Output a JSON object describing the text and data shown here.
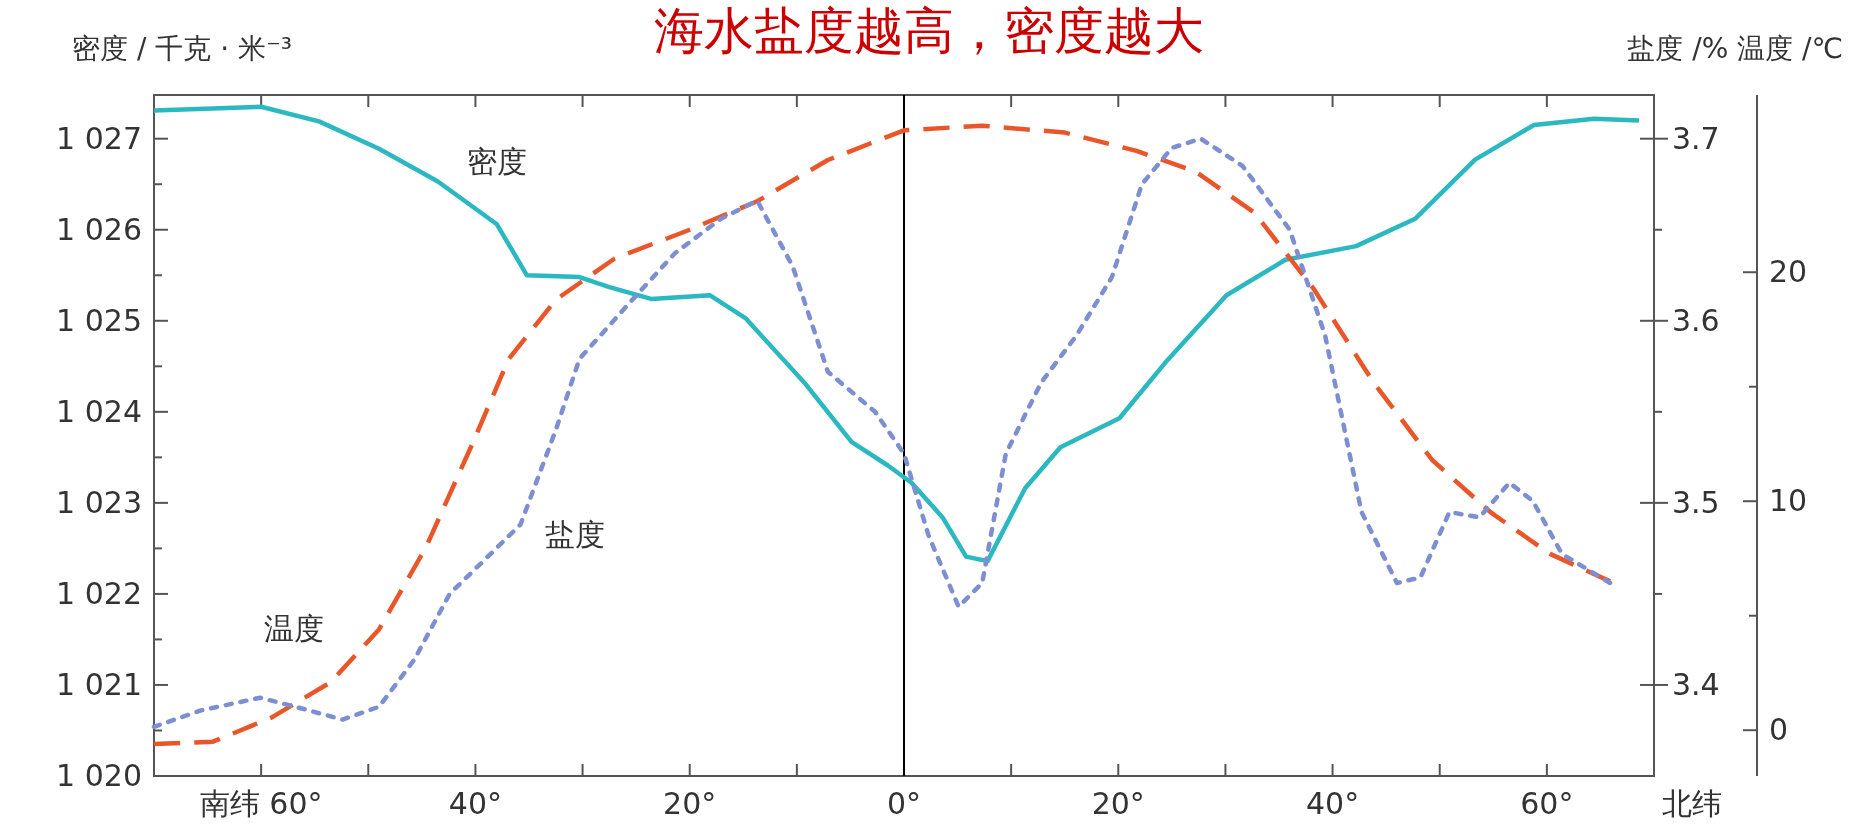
{
  "chart_data": {
    "type": "line",
    "title": "海水盐度越高，密度越大",
    "ylabel": "密度 / 千克 · 米⁻³",
    "y2label": "盐度 /%",
    "y3label": "温度 /℃",
    "xlim": [
      -70,
      70
    ],
    "xticks": [
      {
        "value": -70,
        "label": null
      },
      {
        "value": -60,
        "label": "南纬 60°"
      },
      {
        "value": -50,
        "label": null
      },
      {
        "value": -40,
        "label": "40°"
      },
      {
        "value": -30,
        "label": null
      },
      {
        "value": -20,
        "label": "20°"
      },
      {
        "value": -10,
        "label": null
      },
      {
        "value": 0,
        "label": "0°"
      },
      {
        "value": 10,
        "label": null
      },
      {
        "value": 20,
        "label": "20°"
      },
      {
        "value": 30,
        "label": null
      },
      {
        "value": 40,
        "label": "40°"
      },
      {
        "value": 50,
        "label": null
      },
      {
        "value": 60,
        "label": "60°"
      }
    ],
    "ylim": [
      1020,
      1027.48
    ],
    "yticks": [
      {
        "value": 1020,
        "label": "1 020"
      },
      {
        "value": 1021,
        "label": "1 021"
      },
      {
        "value": 1022,
        "label": "1 022"
      },
      {
        "value": 1023,
        "label": "1 023"
      },
      {
        "value": 1024,
        "label": "1 024"
      },
      {
        "value": 1025,
        "label": "1 025"
      },
      {
        "value": 1026,
        "label": "1 026"
      },
      {
        "value": 1027,
        "label": "1 027"
      }
    ],
    "y2lim": [
      3.35,
      3.724
    ],
    "y2ticks": [
      3.4,
      3.5,
      3.6,
      3.7
    ],
    "y3lim": [
      -2,
      27.74
    ],
    "y3ticks": [
      0,
      10,
      20
    ],
    "grid": false,
    "ref_lines": [
      {
        "axis": "x",
        "value": 0,
        "color": "#000000"
      }
    ],
    "annotations": [
      "北纬"
    ],
    "series": [
      {
        "name": "密度",
        "color": "#2bb8c0",
        "line_style": "solid",
        "x": [
          -70,
          -60,
          -54.6,
          -49,
          -43.5,
          -38,
          -35.2,
          -30.3,
          -27.5,
          -23.6,
          -18.1,
          -14.8,
          -9.3,
          -4.9,
          -1.5,
          0.7,
          3.6,
          5.8,
          7.8,
          11.3,
          14.6,
          20.1,
          24.6,
          30.1,
          35.6,
          42.2,
          47.7,
          53.3,
          58.8,
          64.4,
          68.6
        ],
        "values": [
          1027.31,
          1027.35,
          1027.19,
          1026.89,
          1026.53,
          1026.06,
          1025.5,
          1025.48,
          1025.37,
          1025.24,
          1025.28,
          1025.03,
          1024.32,
          1023.67,
          1023.41,
          1023.22,
          1022.84,
          1022.41,
          1022.36,
          1023.16,
          1023.61,
          1023.93,
          1024.57,
          1025.28,
          1025.67,
          1025.82,
          1026.12,
          1026.77,
          1027.15,
          1027.22,
          1027.2
        ]
      },
      {
        "name": "温度",
        "color": "#e8562a",
        "line_style": "dashed",
        "axis": "y3",
        "x": [
          -70,
          -64.5,
          -59,
          -53.5,
          -49,
          -44.6,
          -40.2,
          -36.9,
          -32.5,
          -27,
          -20.3,
          -13.7,
          -7.1,
          0,
          7.3,
          15,
          21.7,
          27.2,
          32.7,
          38.2,
          43.8,
          49.3,
          54.8,
          60.3,
          65.9
        ],
        "values": [
          -0.6,
          -0.5,
          0.56,
          2.1,
          4.4,
          8.0,
          12.6,
          16.2,
          18.8,
          20.6,
          21.8,
          23.1,
          24.9,
          26.2,
          26.4,
          26.1,
          25.3,
          24.4,
          22.6,
          19.3,
          15.2,
          11.8,
          9.5,
          7.7,
          6.5
        ]
      },
      {
        "name": "盐度",
        "color": "#7d8fd0",
        "line_style": "dotted",
        "axis": "y2",
        "x": [
          -70,
          -65.6,
          -60.1,
          -56.8,
          -52.4,
          -49,
          -45.7,
          -42.4,
          -39.1,
          -35.8,
          -32.5,
          -30.3,
          -25.9,
          -21.4,
          -17.1,
          -13.7,
          -10.4,
          -7.1,
          -2.7,
          0,
          2.3,
          5.1,
          7.3,
          9.5,
          12.8,
          16.1,
          19.4,
          22.2,
          25,
          27.7,
          31.6,
          36,
          39.3,
          42.7,
          46,
          48.2,
          50.9,
          53.7,
          56.5,
          58.7,
          61.4,
          65.9
        ],
        "values": [
          3.377,
          3.386,
          3.393,
          3.388,
          3.381,
          3.388,
          3.414,
          3.45,
          3.469,
          3.488,
          3.54,
          3.579,
          3.608,
          3.637,
          3.656,
          3.666,
          3.63,
          3.572,
          3.55,
          3.527,
          3.482,
          3.443,
          3.456,
          3.527,
          3.566,
          3.592,
          3.624,
          3.675,
          3.695,
          3.7,
          3.685,
          3.65,
          3.592,
          3.495,
          3.456,
          3.459,
          3.495,
          3.492,
          3.511,
          3.501,
          3.472,
          3.456
        ]
      }
    ]
  }
}
